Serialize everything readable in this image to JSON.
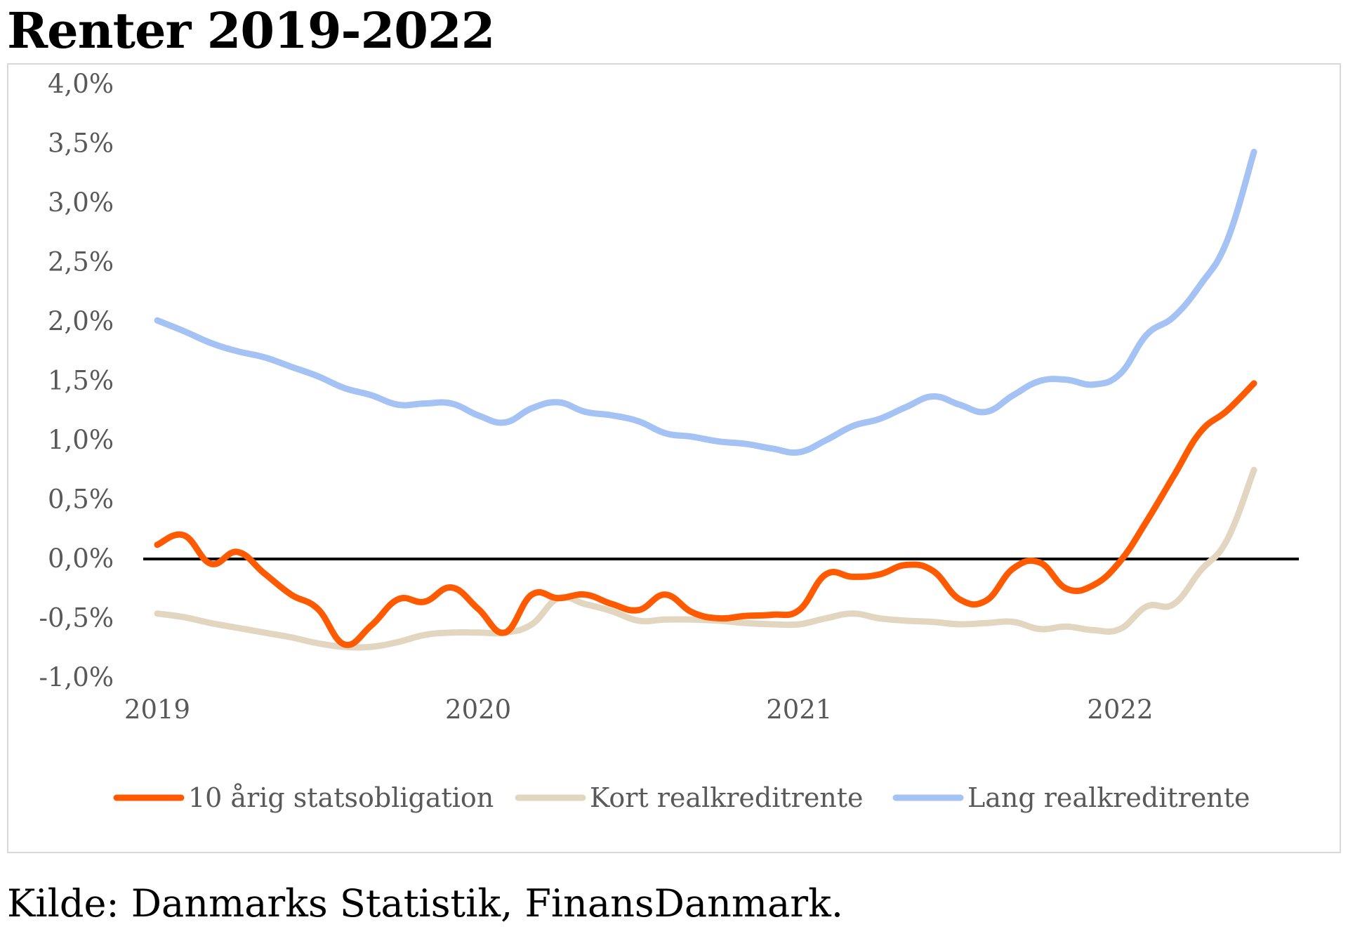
{
  "title": "Renter 2019-2022",
  "source": "Kilde: Danmarks Statistik, FinansDanmark.",
  "chart_data": {
    "type": "line",
    "title": "Renter 2019-2022",
    "xlabel": "",
    "ylabel": "",
    "ylim": [
      -1.0,
      4.0
    ],
    "xlim": [
      2019.0,
      2022.5
    ],
    "yticks": [
      {
        "value": 4.0,
        "label": "4,0%"
      },
      {
        "value": 3.5,
        "label": "3,5%"
      },
      {
        "value": 3.0,
        "label": "3,0%"
      },
      {
        "value": 2.5,
        "label": "2,5%"
      },
      {
        "value": 2.0,
        "label": "2,0%"
      },
      {
        "value": 1.5,
        "label": "1,5%"
      },
      {
        "value": 1.0,
        "label": "1,0%"
      },
      {
        "value": 0.5,
        "label": "0,5%"
      },
      {
        "value": 0.0,
        "label": "0,0%"
      },
      {
        "value": -0.5,
        "label": "-0,5%"
      },
      {
        "value": -1.0,
        "label": "-1,0%"
      }
    ],
    "xticks": [
      {
        "value": 2019,
        "label": "2019"
      },
      {
        "value": 2020,
        "label": "2020"
      },
      {
        "value": 2021,
        "label": "2021"
      },
      {
        "value": 2022,
        "label": "2022"
      }
    ],
    "zero_line": 0,
    "grid": false,
    "legend_position": "bottom",
    "series": [
      {
        "name": "10 årig statsobligation",
        "color": "#ff5a00",
        "x": [
          2019.0,
          2019.083,
          2019.167,
          2019.25,
          2019.333,
          2019.417,
          2019.5,
          2019.583,
          2019.667,
          2019.75,
          2019.833,
          2019.917,
          2020.0,
          2020.083,
          2020.167,
          2020.25,
          2020.333,
          2020.417,
          2020.5,
          2020.583,
          2020.667,
          2020.75,
          2020.833,
          2020.917,
          2021.0,
          2021.083,
          2021.167,
          2021.25,
          2021.333,
          2021.417,
          2021.5,
          2021.583,
          2021.667,
          2021.75,
          2021.833,
          2021.917,
          2022.0,
          2022.083,
          2022.167,
          2022.25,
          2022.333,
          2022.417
        ],
        "values": [
          0.12,
          0.2,
          -0.04,
          0.06,
          -0.12,
          -0.3,
          -0.42,
          -0.72,
          -0.56,
          -0.34,
          -0.36,
          -0.24,
          -0.42,
          -0.62,
          -0.3,
          -0.33,
          -0.3,
          -0.38,
          -0.43,
          -0.3,
          -0.45,
          -0.5,
          -0.48,
          -0.47,
          -0.43,
          -0.13,
          -0.15,
          -0.13,
          -0.05,
          -0.1,
          -0.34,
          -0.35,
          -0.08,
          -0.03,
          -0.25,
          -0.22,
          -0.02,
          0.32,
          0.7,
          1.07,
          1.25,
          1.48
        ]
      },
      {
        "name": "Kort realkreditrente",
        "color": "#e3d6c0",
        "x": [
          2019.0,
          2019.083,
          2019.167,
          2019.25,
          2019.333,
          2019.417,
          2019.5,
          2019.583,
          2019.667,
          2019.75,
          2019.833,
          2019.917,
          2020.0,
          2020.083,
          2020.167,
          2020.25,
          2020.333,
          2020.417,
          2020.5,
          2020.583,
          2020.667,
          2020.75,
          2020.833,
          2020.917,
          2021.0,
          2021.083,
          2021.167,
          2021.25,
          2021.333,
          2021.417,
          2021.5,
          2021.583,
          2021.667,
          2021.75,
          2021.833,
          2021.917,
          2022.0,
          2022.083,
          2022.167,
          2022.25,
          2022.333,
          2022.417
        ],
        "values": [
          -0.46,
          -0.49,
          -0.54,
          -0.58,
          -0.62,
          -0.66,
          -0.71,
          -0.74,
          -0.74,
          -0.7,
          -0.64,
          -0.62,
          -0.62,
          -0.62,
          -0.55,
          -0.33,
          -0.38,
          -0.44,
          -0.52,
          -0.51,
          -0.51,
          -0.52,
          -0.54,
          -0.55,
          -0.55,
          -0.5,
          -0.46,
          -0.5,
          -0.52,
          -0.53,
          -0.55,
          -0.54,
          -0.53,
          -0.59,
          -0.57,
          -0.6,
          -0.59,
          -0.4,
          -0.38,
          -0.1,
          0.16,
          0.75
        ]
      },
      {
        "name": "Lang realkreditrente",
        "color": "#a4c2f4",
        "x": [
          2019.0,
          2019.083,
          2019.167,
          2019.25,
          2019.333,
          2019.417,
          2019.5,
          2019.583,
          2019.667,
          2019.75,
          2019.833,
          2019.917,
          2020.0,
          2020.083,
          2020.167,
          2020.25,
          2020.333,
          2020.417,
          2020.5,
          2020.583,
          2020.667,
          2020.75,
          2020.833,
          2020.917,
          2021.0,
          2021.083,
          2021.167,
          2021.25,
          2021.333,
          2021.417,
          2021.5,
          2021.583,
          2021.667,
          2021.75,
          2021.833,
          2021.917,
          2022.0,
          2022.083,
          2022.167,
          2022.25,
          2022.333,
          2022.417
        ],
        "values": [
          2.01,
          1.92,
          1.82,
          1.75,
          1.7,
          1.62,
          1.54,
          1.44,
          1.38,
          1.3,
          1.31,
          1.31,
          1.21,
          1.15,
          1.27,
          1.32,
          1.24,
          1.21,
          1.16,
          1.06,
          1.03,
          0.99,
          0.97,
          0.93,
          0.9,
          1.0,
          1.12,
          1.18,
          1.28,
          1.37,
          1.3,
          1.24,
          1.38,
          1.5,
          1.51,
          1.47,
          1.56,
          1.89,
          2.04,
          2.31,
          2.68,
          3.43
        ]
      }
    ]
  }
}
